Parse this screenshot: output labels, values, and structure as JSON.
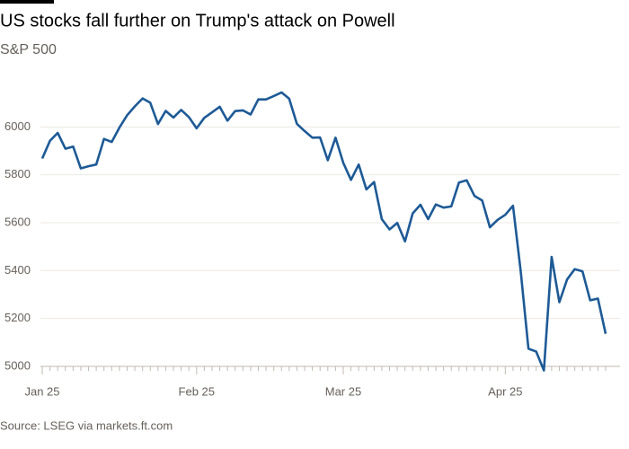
{
  "chart_data": {
    "type": "line",
    "title": "US stocks fall further on Trump's attack on Powell",
    "subtitle": "S&P 500",
    "source": "Source: LSEG via markets.ft.com",
    "color": "#1d5a96",
    "grid": true,
    "ylim": [
      5000,
      6200
    ],
    "yticks": [
      5000,
      5200,
      5400,
      5600,
      5800,
      6000
    ],
    "categories": [
      "Jan 25",
      null,
      null,
      null,
      null,
      null,
      null,
      null,
      null,
      null,
      null,
      null,
      null,
      null,
      null,
      null,
      null,
      null,
      null,
      null,
      "Feb 25",
      null,
      null,
      null,
      null,
      null,
      null,
      null,
      null,
      null,
      null,
      null,
      null,
      null,
      null,
      null,
      null,
      null,
      null,
      "Mar 25",
      null,
      null,
      null,
      null,
      null,
      null,
      null,
      null,
      null,
      null,
      null,
      null,
      null,
      null,
      null,
      null,
      null,
      null,
      null,
      null,
      "Apr 25",
      null,
      null,
      null,
      null,
      null,
      null,
      null,
      null,
      null,
      null,
      null,
      null,
      null
    ],
    "values": [
      5868,
      5942,
      5975,
      5909,
      5918,
      5827,
      5836,
      5843,
      5950,
      5937,
      5997,
      6049,
      6086,
      6119,
      6101,
      6012,
      6067,
      6039,
      6071,
      6041,
      5994,
      6038,
      6061,
      6084,
      6026,
      6066,
      6069,
      6052,
      6115,
      6115,
      6129,
      6144,
      6118,
      6013,
      5983,
      5955,
      5956,
      5861,
      5955,
      5850,
      5779,
      5843,
      5739,
      5770,
      5615,
      5572,
      5599,
      5522,
      5639,
      5675,
      5615,
      5676,
      5663,
      5668,
      5768,
      5777,
      5712,
      5693,
      5581,
      5612,
      5633,
      5671,
      5397,
      5074,
      5062,
      4983,
      5457,
      5268,
      5363,
      5406,
      5397,
      5276,
      5283,
      5136
    ]
  }
}
